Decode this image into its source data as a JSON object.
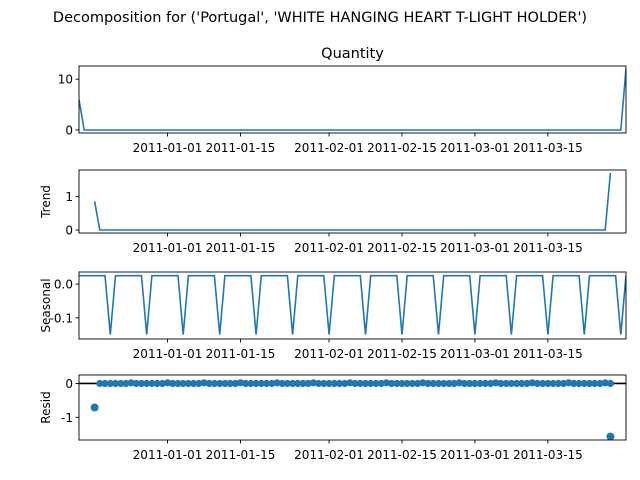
{
  "title": "Decomposition for ('Portugal', 'WHITE HANGING HEART T-LIGHT HOLDER')",
  "colors": {
    "line": "#1f77b4",
    "axis": "#000000",
    "background": "#ffffff"
  },
  "x_ticks": [
    "2011-01-01",
    "2011-01-15",
    "2011-02-01",
    "2011-02-15",
    "2011-03-01",
    "2011-03-15"
  ],
  "chart_data": [
    {
      "type": "line",
      "title": "Quantity",
      "ylabel": "",
      "x_range": [
        "2010-12-15",
        "2011-03-30"
      ],
      "yticks": [
        0,
        10
      ],
      "ylim": [
        -0.6,
        12.6
      ],
      "series": [
        {
          "points": [
            [
              "2010-12-15",
              6
            ],
            [
              "2010-12-16",
              0
            ],
            [
              "2011-03-29",
              0
            ],
            [
              "2011-03-30",
              12
            ]
          ]
        }
      ]
    },
    {
      "type": "line",
      "title": "",
      "ylabel": "Trend",
      "x_range": [
        "2010-12-15",
        "2011-03-30"
      ],
      "yticks": [
        0,
        1
      ],
      "ylim": [
        -0.09,
        1.8
      ],
      "series": [
        {
          "points": [
            [
              "2010-12-18",
              0.86
            ],
            [
              "2010-12-19",
              0
            ],
            [
              "2011-03-26",
              0
            ],
            [
              "2011-03-27",
              1.71
            ]
          ]
        }
      ]
    },
    {
      "type": "line",
      "title": "",
      "ylabel": "Seasonal",
      "x_range": [
        "2010-12-15",
        "2011-03-30"
      ],
      "yticks": [
        0.0,
        -0.1
      ],
      "ylim": [
        -0.163,
        0.036
      ],
      "pattern": {
        "period_days": 7,
        "values": [
          0.025,
          0.025,
          0.025,
          0.025,
          0.025,
          0.025,
          -0.15
        ]
      }
    },
    {
      "type": "scatter",
      "title": "",
      "ylabel": "Resid",
      "x_range": [
        "2010-12-15",
        "2011-03-30"
      ],
      "yticks": [
        0,
        -1
      ],
      "ylim": [
        -1.67,
        0.25
      ],
      "reference_line": 0,
      "points_from": "2010-12-19",
      "points_to": "2011-03-27",
      "period_days": 7,
      "weekly_resid": [
        0,
        0,
        0,
        0,
        0,
        0,
        0.02
      ],
      "outliers": [
        [
          "2010-12-18",
          -0.71
        ],
        [
          "2011-03-27",
          -1.57
        ]
      ]
    }
  ]
}
